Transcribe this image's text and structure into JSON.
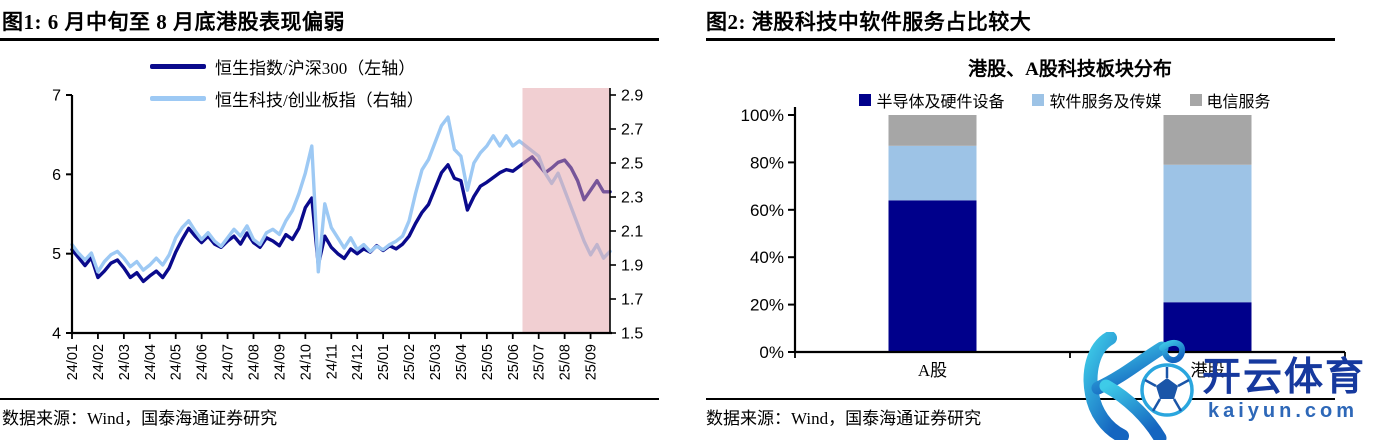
{
  "figure1": {
    "title": "图1:  6 月中旬至 8 月底港股表现偏弱",
    "source": "数据来源：Wind，国泰海通证券研究",
    "chart_data": {
      "type": "line",
      "x_tick_labels": [
        "24/01",
        "24/02",
        "24/03",
        "24/04",
        "24/05",
        "24/06",
        "24/07",
        "24/08",
        "24/09",
        "24/10",
        "24/11",
        "24/12",
        "25/01",
        "25/02",
        "25/03",
        "25/04",
        "25/05",
        "25/06",
        "25/07",
        "25/08",
        "25/09"
      ],
      "points_per_month": 4,
      "left_axis": {
        "min": 4,
        "max": 7,
        "tick_labels": [
          "4",
          "5",
          "6",
          "7"
        ]
      },
      "right_axis": {
        "min": 1.5,
        "max": 2.9,
        "tick_labels": [
          "1.5",
          "1.7",
          "1.9",
          "2.1",
          "2.3",
          "2.5",
          "2.7",
          "2.9"
        ]
      },
      "series": [
        {
          "name": "恒生指数/沪深300（左轴）",
          "axis": "left",
          "color": "#0A0A8C",
          "values": [
            5.05,
            4.95,
            4.85,
            4.95,
            4.7,
            4.78,
            4.88,
            4.92,
            4.82,
            4.7,
            4.76,
            4.65,
            4.72,
            4.78,
            4.7,
            4.82,
            5.02,
            5.18,
            5.32,
            5.22,
            5.14,
            5.22,
            5.12,
            5.08,
            5.16,
            5.22,
            5.12,
            5.26,
            5.14,
            5.08,
            5.2,
            5.16,
            5.1,
            5.24,
            5.18,
            5.32,
            5.58,
            5.7,
            4.86,
            5.22,
            5.08,
            5.0,
            4.94,
            5.06,
            5.0,
            5.06,
            5.02,
            5.1,
            5.04,
            5.1,
            5.06,
            5.12,
            5.22,
            5.38,
            5.52,
            5.62,
            5.82,
            6.02,
            6.12,
            5.95,
            5.92,
            5.55,
            5.72,
            5.85,
            5.9,
            5.96,
            6.02,
            6.06,
            6.04,
            6.1,
            6.16,
            6.22,
            6.12,
            6.02,
            6.08,
            6.15,
            6.18,
            6.08,
            5.92,
            5.68,
            5.8,
            5.92,
            5.78,
            5.78
          ]
        },
        {
          "name": "恒生科技/创业板指（右轴）",
          "axis": "right",
          "color": "#9DC9F4",
          "values": [
            2.02,
            1.97,
            1.93,
            1.97,
            1.86,
            1.92,
            1.96,
            1.98,
            1.94,
            1.89,
            1.92,
            1.87,
            1.9,
            1.94,
            1.9,
            1.96,
            2.06,
            2.12,
            2.16,
            2.1,
            2.05,
            2.09,
            2.04,
            2.01,
            2.06,
            2.11,
            2.07,
            2.13,
            2.05,
            2.02,
            2.09,
            2.11,
            2.08,
            2.16,
            2.22,
            2.32,
            2.44,
            2.6,
            1.86,
            2.26,
            2.12,
            2.06,
            2.0,
            2.06,
            1.99,
            2.02,
            1.98,
            2.01,
            1.99,
            2.02,
            2.04,
            2.07,
            2.16,
            2.32,
            2.46,
            2.52,
            2.62,
            2.72,
            2.77,
            2.58,
            2.54,
            2.34,
            2.5,
            2.56,
            2.6,
            2.66,
            2.6,
            2.66,
            2.6,
            2.63,
            2.6,
            2.57,
            2.54,
            2.44,
            2.38,
            2.44,
            2.34,
            2.24,
            2.14,
            2.04,
            1.96,
            2.02,
            1.94,
            1.98
          ]
        }
      ],
      "highlight_band": {
        "from_index": 69.5,
        "to_index": 83,
        "color": "#E4A0A6",
        "opacity": 0.5,
        "covers": "25/06 — 25/09"
      }
    }
  },
  "figure2": {
    "title": "图2:  港股科技中软件服务占比较大",
    "source": "数据来源：Wind，国泰海通证券研究",
    "chart_data": {
      "type": "stacked_bar",
      "title": "港股、A股科技板块分布",
      "categories": [
        "A股",
        "港股"
      ],
      "series": [
        {
          "name": "半导体及硬件设备",
          "color": "#00008B",
          "values": [
            64,
            21
          ]
        },
        {
          "name": "软件服务及传媒",
          "color": "#9DC3E6",
          "values": [
            23,
            58
          ]
        },
        {
          "name": "电信服务",
          "color": "#A6A6A6",
          "values": [
            13,
            21
          ]
        }
      ],
      "y_axis": {
        "min": 0,
        "max": 100,
        "tick_labels": [
          "0%",
          "20%",
          "40%",
          "60%",
          "80%",
          "100%"
        ]
      }
    }
  },
  "watermark": {
    "brand": "开云体育",
    "domain": "kaiyun.com",
    "k_color_top": "#3ECBE8",
    "k_color_bottom": "#1565C0",
    "ball_ring_color": "#2AA6DE",
    "ball_pattern_color": "#1A55A8",
    "brand_color": "#16399E",
    "domain_color": "#2E68B8"
  }
}
